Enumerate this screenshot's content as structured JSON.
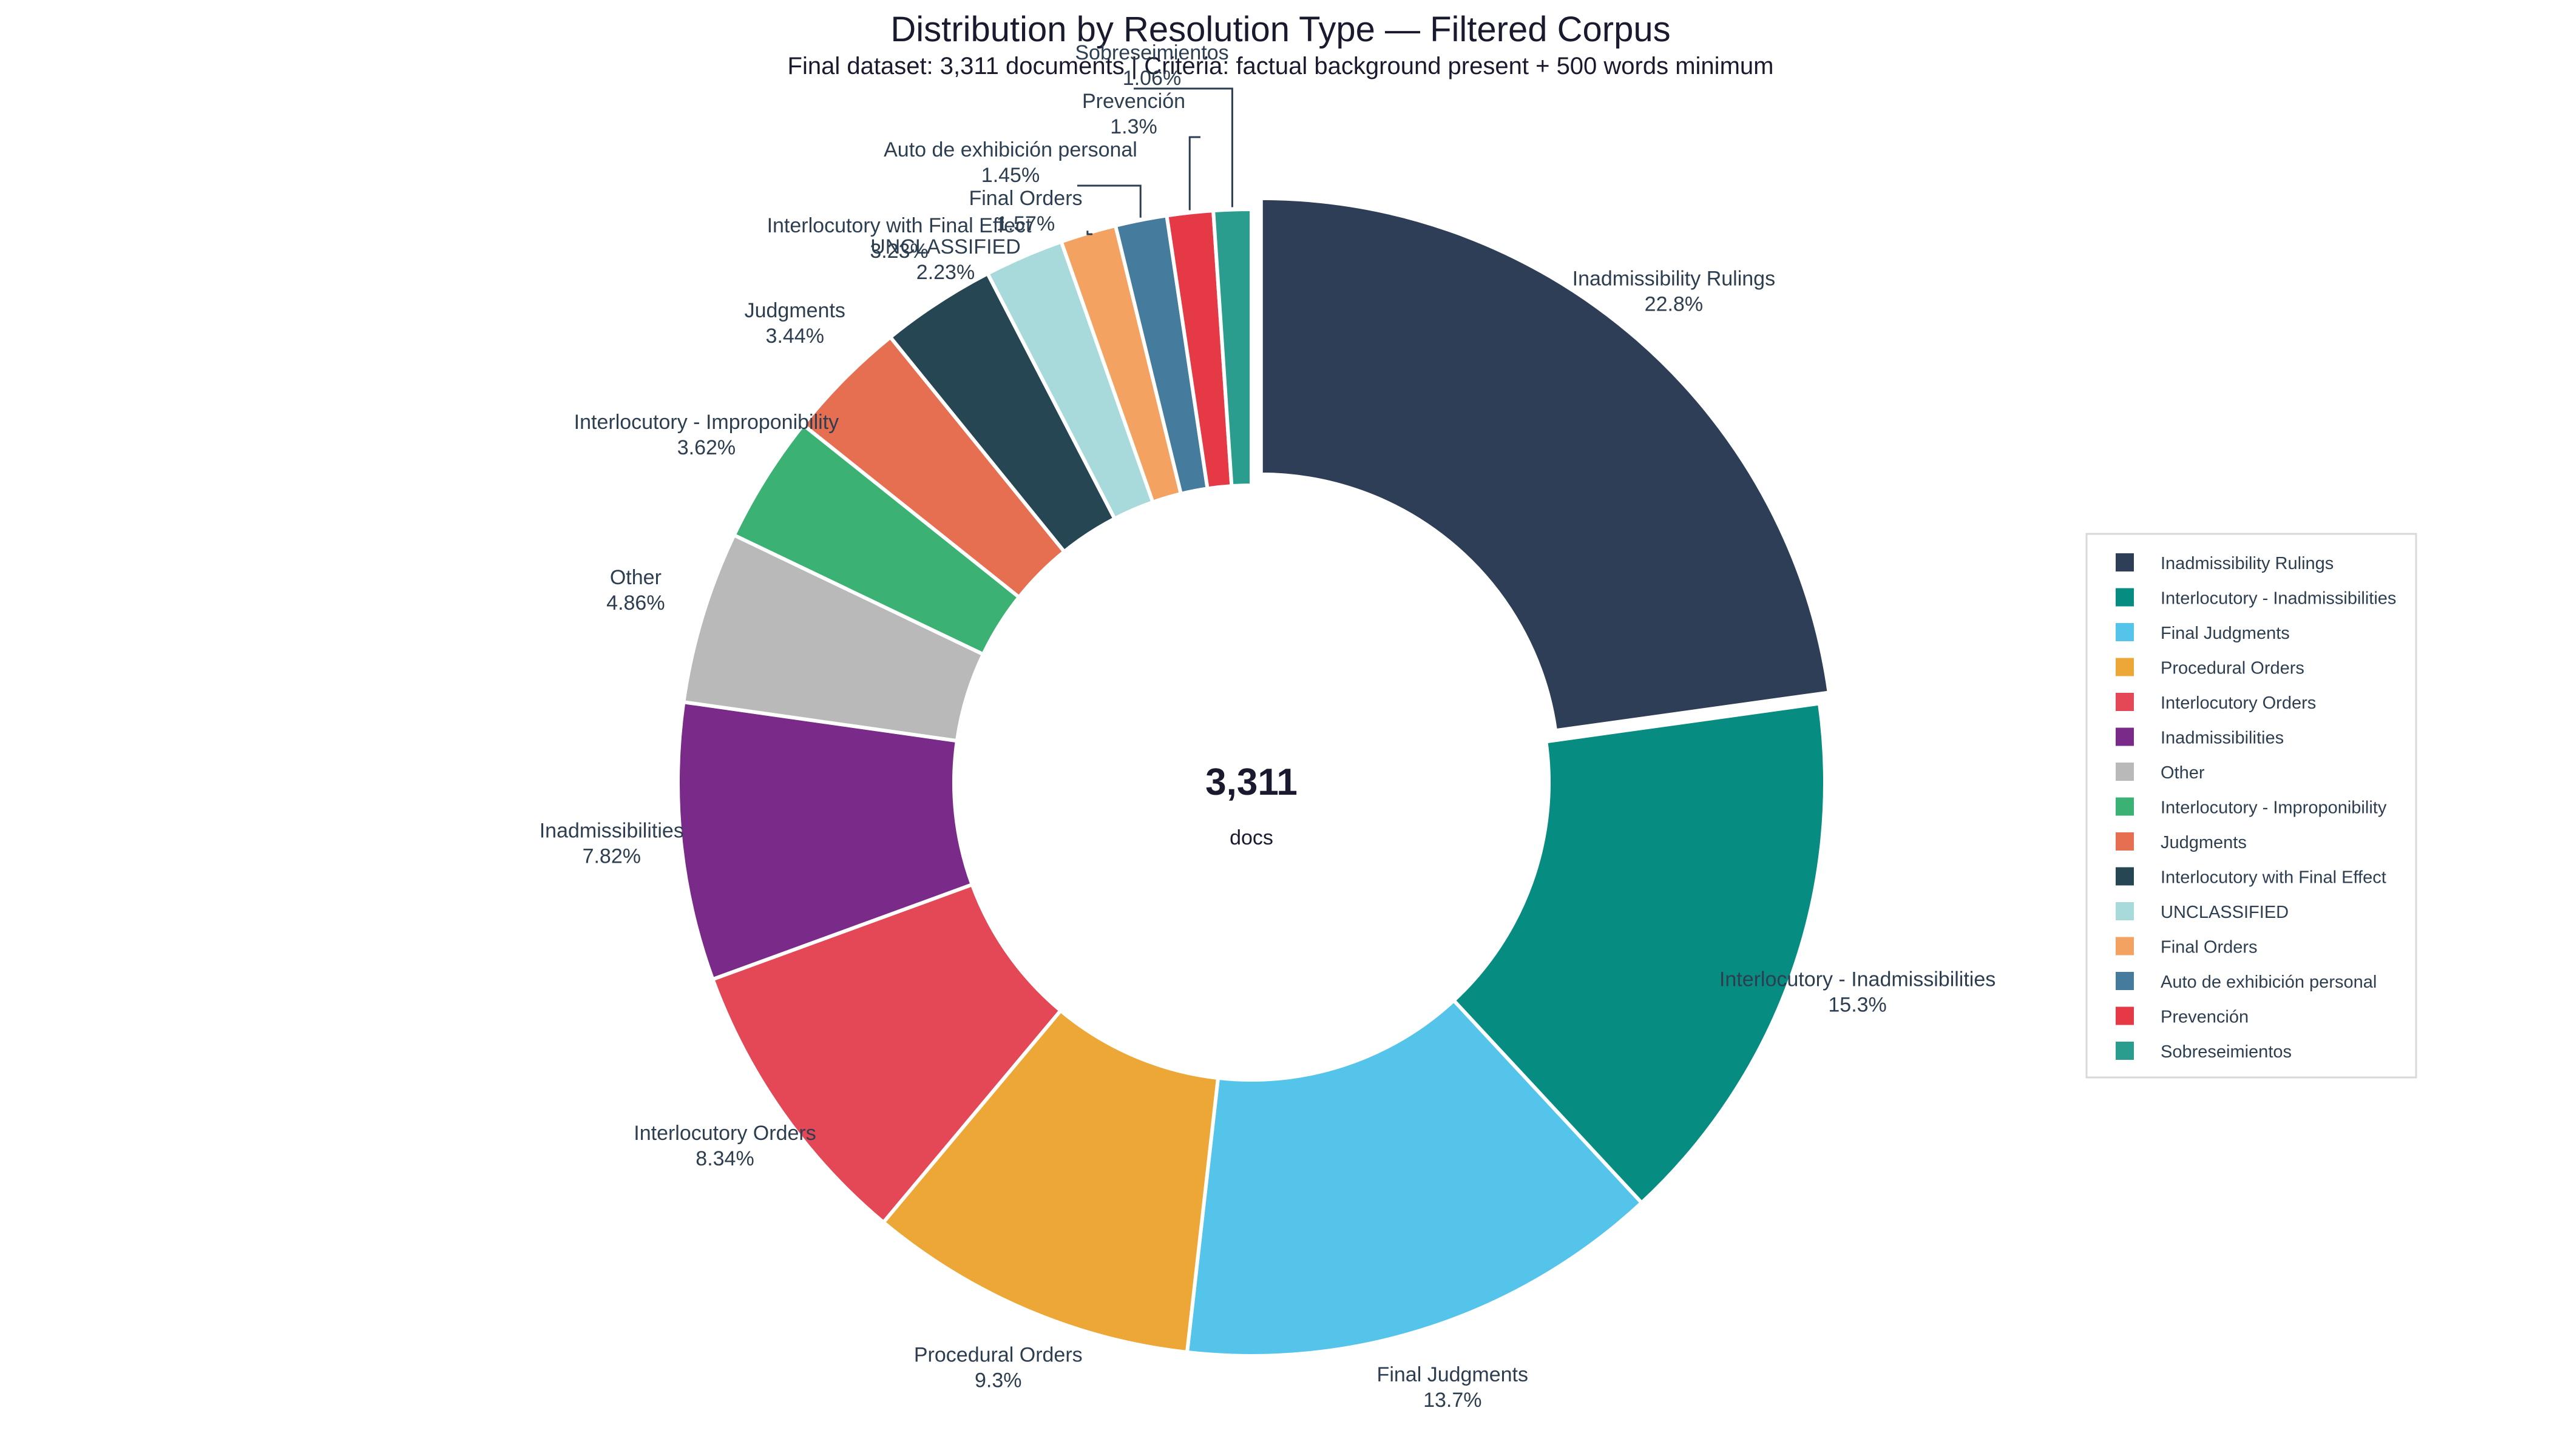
{
  "chart_data": {
    "type": "pie",
    "variant": "donut",
    "title": "Distribution by Resolution Type — Filtered Corpus",
    "subtitle": "Final dataset: 3,311 documents | Criteria: factual background present + 500 words minimum",
    "center_value": "3,311",
    "center_unit": "docs",
    "legend_position": "right",
    "slices": [
      {
        "name": "Inadmissibility Rulings",
        "pct_label": "22.8%",
        "value": 22.8,
        "color": "#2d3e56",
        "exploded": true
      },
      {
        "name": "Interlocutory - Inadmissibilities",
        "pct_label": "15.3%",
        "value": 15.3,
        "color": "#068c80"
      },
      {
        "name": "Final Judgments",
        "pct_label": "13.7%",
        "value": 13.7,
        "color": "#55c4ea"
      },
      {
        "name": "Procedural Orders",
        "pct_label": "9.3%",
        "value": 9.3,
        "color": "#eda736"
      },
      {
        "name": "Interlocutory Orders",
        "pct_label": "8.34%",
        "value": 8.34,
        "color": "#e44755"
      },
      {
        "name": "Inadmissibilities",
        "pct_label": "7.82%",
        "value": 7.82,
        "color": "#7a2b8a"
      },
      {
        "name": "Other",
        "pct_label": "4.86%",
        "value": 4.86,
        "color": "#b9b9b9"
      },
      {
        "name": "Interlocutory - Improponibility",
        "pct_label": "3.62%",
        "value": 3.62,
        "color": "#3bb273"
      },
      {
        "name": "Judgments",
        "pct_label": "3.44%",
        "value": 3.44,
        "color": "#e76f51"
      },
      {
        "name": "Interlocutory with Final Effect",
        "pct_label": "3.23%",
        "value": 3.23,
        "color": "#264653"
      },
      {
        "name": "UNCLASSIFIED",
        "pct_label": "2.23%",
        "value": 2.23,
        "color": "#a8dadc"
      },
      {
        "name": "Final Orders",
        "pct_label": "1.57%",
        "value": 1.57,
        "color": "#f4a261"
      },
      {
        "name": "Auto de exhibición personal",
        "pct_label": "1.45%",
        "value": 1.45,
        "color": "#457b9d"
      },
      {
        "name": "Prevención",
        "pct_label": "1.3%",
        "value": 1.3,
        "color": "#e63946"
      },
      {
        "name": "Sobreseimientos",
        "pct_label": "1.06%",
        "value": 1.06,
        "color": "#2a9d8f"
      }
    ]
  }
}
